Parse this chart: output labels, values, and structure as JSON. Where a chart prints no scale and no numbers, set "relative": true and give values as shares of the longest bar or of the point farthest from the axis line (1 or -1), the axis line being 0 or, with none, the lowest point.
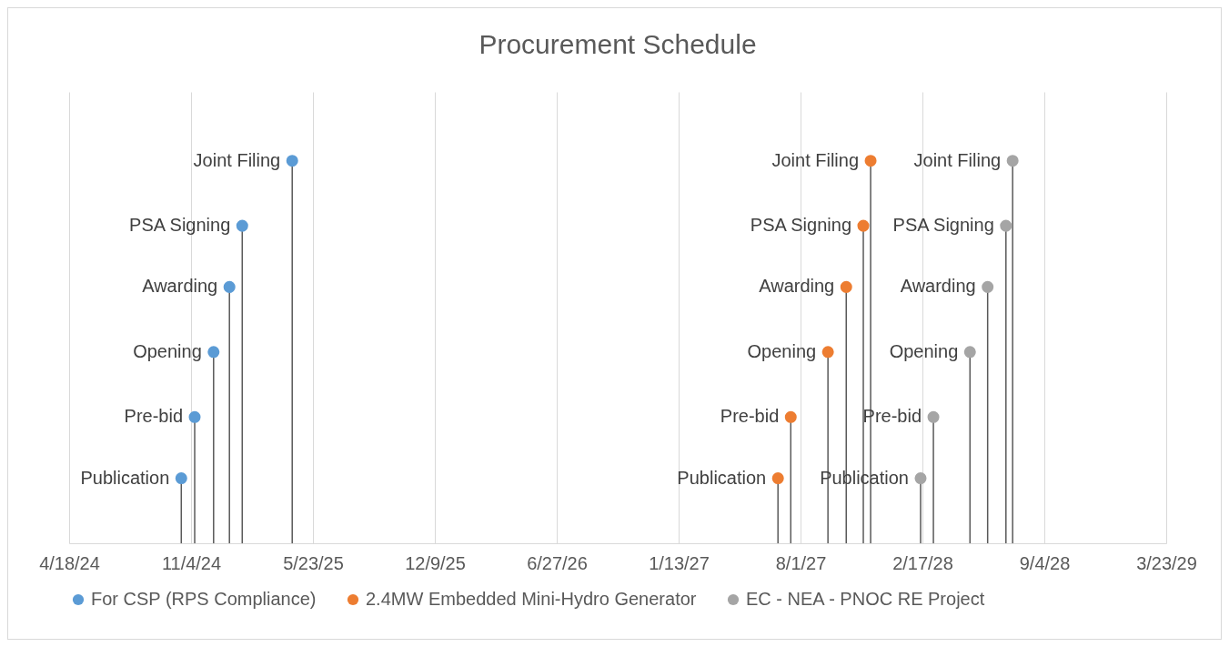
{
  "chart_data": {
    "type": "lollipop",
    "title": "Procurement Schedule",
    "relative": true,
    "grid": "x",
    "legend": "bottom",
    "marker": "circle",
    "xlim": [
      "2024-04-18",
      "2029-03-23"
    ],
    "xticks": [
      {
        "value": "2024-04-18",
        "label": "4/18/24"
      },
      {
        "value": "2024-11-04",
        "label": "11/4/24"
      },
      {
        "value": "2025-05-23",
        "label": "5/23/25"
      },
      {
        "value": "2025-12-09",
        "label": "12/9/25"
      },
      {
        "value": "2026-06-27",
        "label": "6/27/26"
      },
      {
        "value": "2027-01-13",
        "label": "1/13/27"
      },
      {
        "value": "2027-08-01",
        "label": "8/1/27"
      },
      {
        "value": "2028-02-17",
        "label": "2/17/28"
      },
      {
        "value": "2028-09-04",
        "label": "9/4/28"
      },
      {
        "value": "2029-03-23",
        "label": "3/23/29"
      }
    ],
    "series": [
      {
        "name": "For CSP (RPS Compliance)",
        "color": "#5b9bd5",
        "x": [
          "2024-10-19",
          "2024-11-10",
          "2024-12-11",
          "2025-01-06",
          "2025-01-27",
          "2025-04-19"
        ],
        "values": [
          0.17,
          0.33,
          0.5,
          0.67,
          0.83,
          1
        ]
      },
      {
        "name": "2.4MW Embedded Mini-Hydro Generator",
        "color": "#ed7d31",
        "x": [
          "2027-06-25",
          "2027-07-16",
          "2027-09-15",
          "2027-10-15",
          "2027-11-12",
          "2027-11-24"
        ],
        "values": [
          0.17,
          0.33,
          0.5,
          0.67,
          0.83,
          1
        ]
      },
      {
        "name": "EC - NEA - PNOC RE Project",
        "color": "#a5a5a5",
        "x": [
          "2028-02-14",
          "2028-03-06",
          "2028-05-05",
          "2028-06-03",
          "2028-07-03",
          "2028-07-14"
        ],
        "values": [
          0.17,
          0.33,
          0.5,
          0.67,
          0.83,
          1
        ]
      }
    ],
    "annotations": [
      {
        "text": "Publication",
        "x": "2024-10-19",
        "y": 0.17
      },
      {
        "text": "Pre-bid",
        "x": "2024-11-10",
        "y": 0.33
      },
      {
        "text": "Opening",
        "x": "2024-12-11",
        "y": 0.5
      },
      {
        "text": "Awarding",
        "x": "2025-01-06",
        "y": 0.67
      },
      {
        "text": "PSA Signing",
        "x": "2025-01-27",
        "y": 0.83
      },
      {
        "text": "Joint Filing",
        "x": "2025-04-19",
        "y": 1
      },
      {
        "text": "Publication",
        "x": "2027-06-25",
        "y": 0.17
      },
      {
        "text": "Pre-bid",
        "x": "2027-07-16",
        "y": 0.33
      },
      {
        "text": "Opening",
        "x": "2027-09-15",
        "y": 0.5
      },
      {
        "text": "Awarding",
        "x": "2027-10-15",
        "y": 0.67
      },
      {
        "text": "PSA Signing",
        "x": "2027-11-12",
        "y": 0.83
      },
      {
        "text": "Joint Filing",
        "x": "2027-11-24",
        "y": 1
      },
      {
        "text": "Publication",
        "x": "2028-02-14",
        "y": 0.17
      },
      {
        "text": "Pre-bid",
        "x": "2028-03-06",
        "y": 0.33
      },
      {
        "text": "Opening",
        "x": "2028-05-05",
        "y": 0.5
      },
      {
        "text": "Awarding",
        "x": "2028-06-03",
        "y": 0.67
      },
      {
        "text": "PSA Signing",
        "x": "2028-07-03",
        "y": 0.83
      },
      {
        "text": "Joint Filing",
        "x": "2028-07-14",
        "y": 1
      }
    ]
  }
}
